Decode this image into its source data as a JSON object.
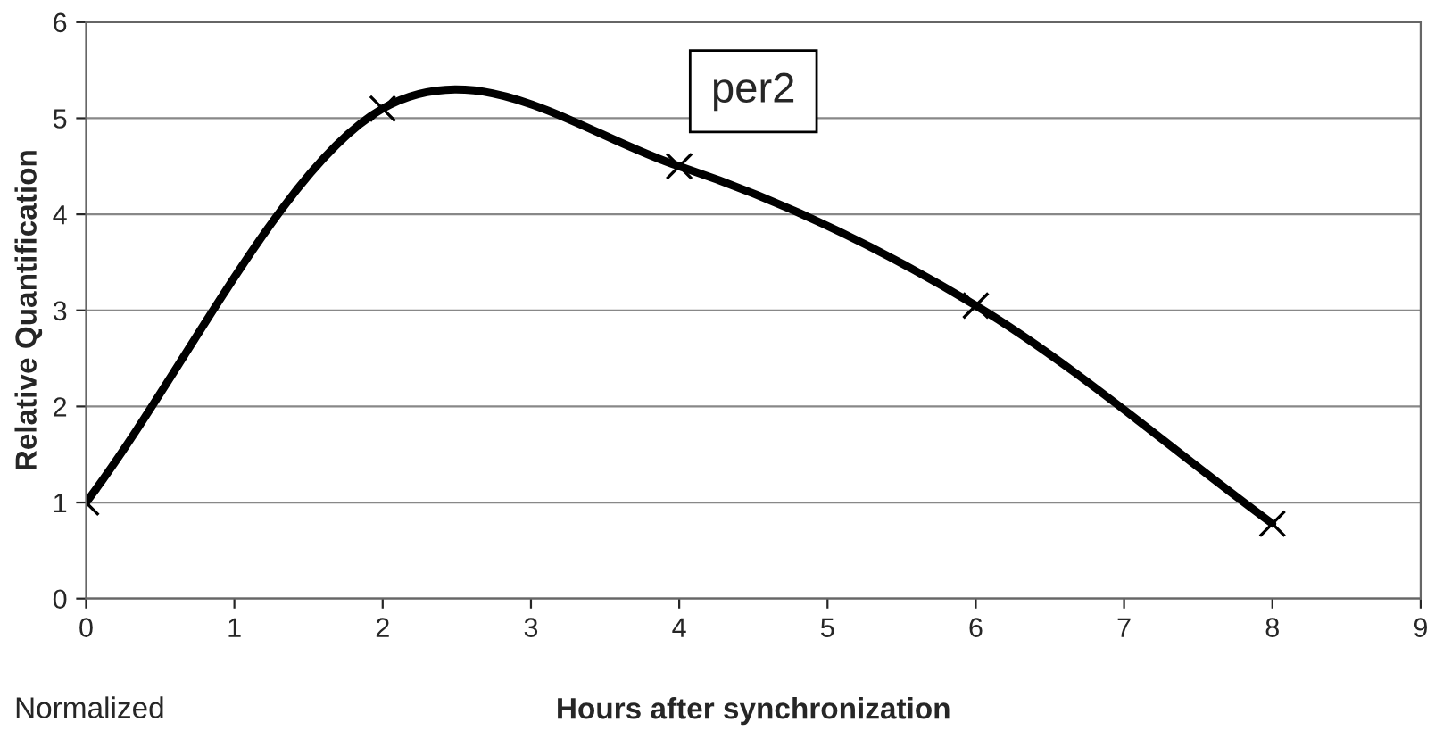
{
  "chart_data": {
    "type": "line",
    "title": "per2",
    "xlabel": "Hours after synchronization",
    "ylabel": "Relative Quantification",
    "x": [
      0,
      2,
      4,
      6,
      8
    ],
    "series": [
      {
        "color": "#000000",
        "values": [
          1.0,
          5.1,
          4.5,
          3.05,
          0.78
        ]
      }
    ],
    "xlim": [
      0,
      9
    ],
    "xticks": [
      0,
      1,
      2,
      3,
      4,
      5,
      6,
      7,
      8,
      9
    ],
    "ylim": [
      0,
      6
    ],
    "yticks": [
      0,
      1,
      2,
      3,
      4,
      5,
      6
    ],
    "grid": "y",
    "marker": "cross",
    "line_style": "solid",
    "legend": false,
    "annotations": [
      "Normalized"
    ]
  }
}
